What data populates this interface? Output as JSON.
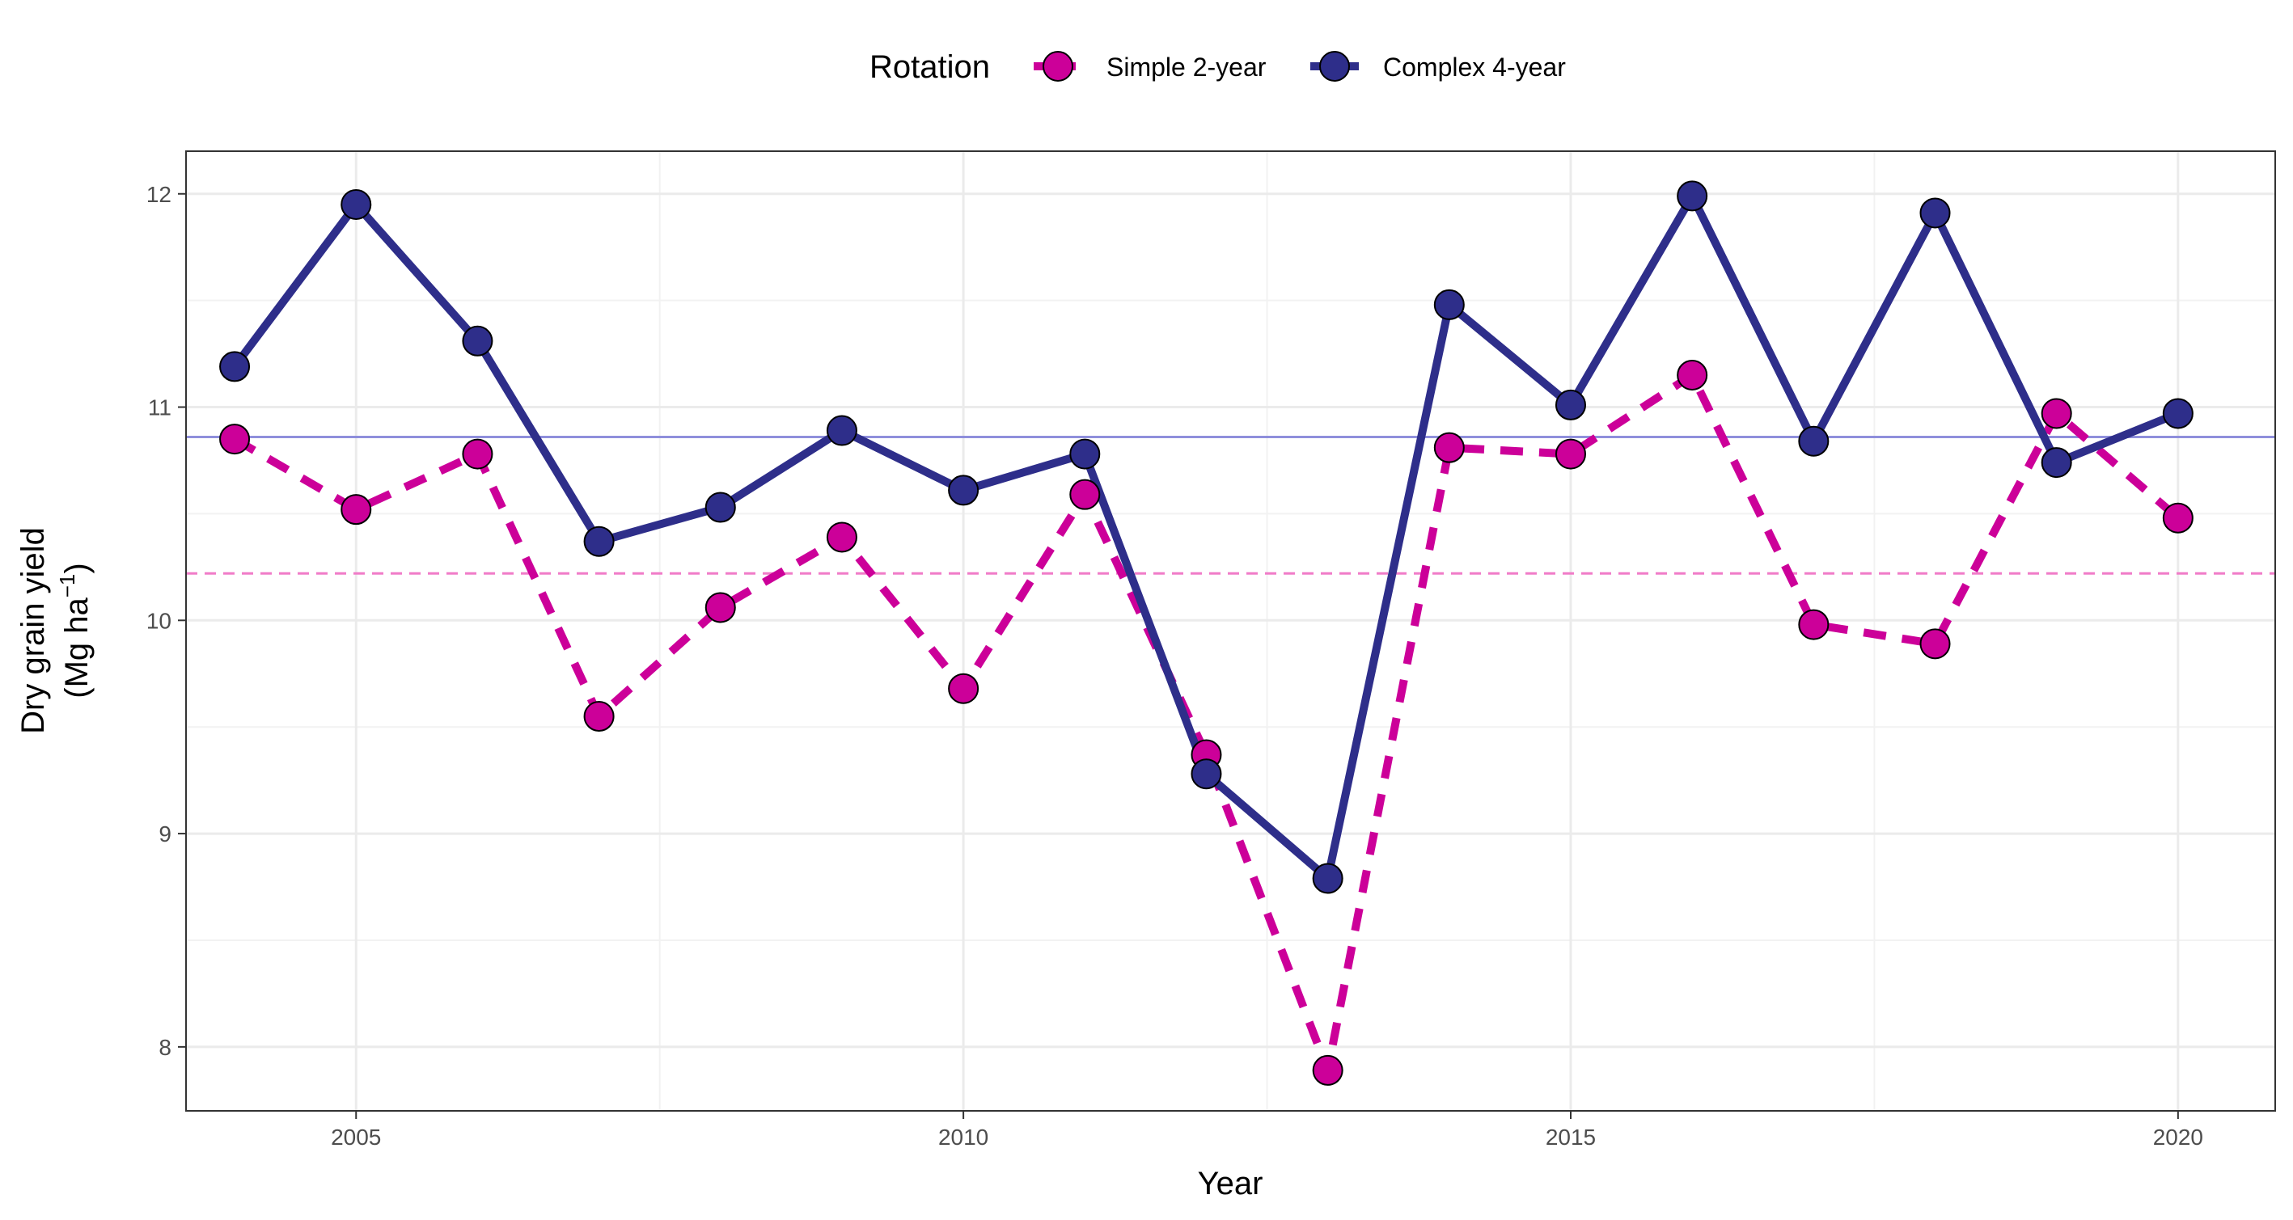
{
  "chart_data": {
    "type": "line",
    "xlabel": "Year",
    "ylabel_line1": "Dry grain yield",
    "ylabel_line2_prefix": "(Mg  ha",
    "ylabel_line2_sup": "−1",
    "ylabel_line2_suffix": ")",
    "legend_title": "Rotation",
    "legend_position": "top",
    "grid": true,
    "xlim": [
      2003.6,
      2020.8
    ],
    "ylim": [
      7.7,
      12.2
    ],
    "x_ticks": [
      2005,
      2010,
      2015,
      2020
    ],
    "x_tick_labels": [
      "2005",
      "2010",
      "2015",
      "2020"
    ],
    "y_ticks": [
      8,
      9,
      10,
      11,
      12
    ],
    "y_tick_labels": [
      "8",
      "9",
      "10",
      "11",
      "12"
    ],
    "x": [
      2004,
      2005,
      2006,
      2007,
      2008,
      2009,
      2010,
      2011,
      2012,
      2013,
      2014,
      2015,
      2016,
      2017,
      2018,
      2019,
      2020
    ],
    "series": [
      {
        "name": "Simple 2-year",
        "color": "#cc0099",
        "line_style": "dashed",
        "mean": 10.22,
        "mean_color": "#f07cc8",
        "values": [
          10.85,
          10.52,
          10.78,
          9.55,
          10.06,
          10.39,
          9.68,
          10.59,
          9.37,
          7.89,
          10.81,
          10.78,
          11.15,
          9.98,
          9.89,
          10.97,
          10.48
        ]
      },
      {
        "name": "Complex 4-year",
        "color": "#2e2e8a",
        "line_style": "solid",
        "mean": 10.86,
        "mean_color": "#8f8fdc",
        "values": [
          11.19,
          11.95,
          11.31,
          10.37,
          10.53,
          10.89,
          10.61,
          10.78,
          9.28,
          8.79,
          11.48,
          11.01,
          11.99,
          10.84,
          11.91,
          10.74,
          10.97
        ]
      }
    ]
  }
}
